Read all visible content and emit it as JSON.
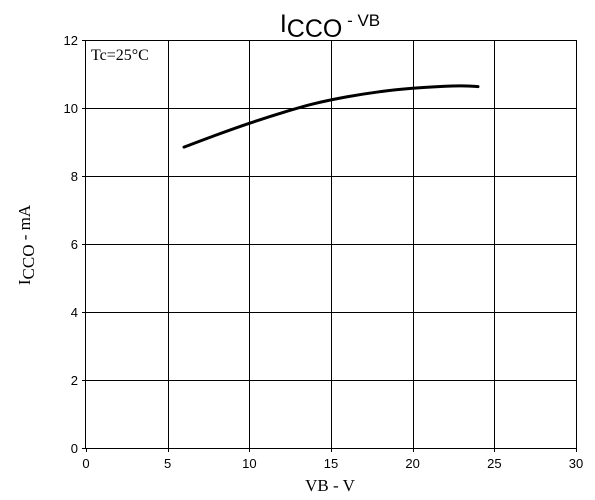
{
  "chart_data": {
    "type": "line",
    "title": {
      "prefix": "I",
      "subscript": "CCO",
      "suffix": " - VB"
    },
    "xlabel": "VB - V",
    "ylabel": {
      "prefix": "I",
      "subscript": "CCO",
      "suffix": " - mA"
    },
    "xlim": [
      0,
      30
    ],
    "ylim": [
      0,
      12
    ],
    "xticks": [
      0,
      5,
      10,
      15,
      20,
      25,
      30
    ],
    "yticks": [
      0,
      2,
      4,
      6,
      8,
      10,
      12
    ],
    "grid": true,
    "annotation": "Tc=25°C",
    "series": [
      {
        "x": [
          6,
          8,
          10,
          12,
          14,
          16,
          18,
          20,
          22,
          23,
          24
        ],
        "y": [
          8.85,
          9.21,
          9.55,
          9.86,
          10.13,
          10.33,
          10.48,
          10.58,
          10.64,
          10.65,
          10.63
        ]
      }
    ]
  }
}
